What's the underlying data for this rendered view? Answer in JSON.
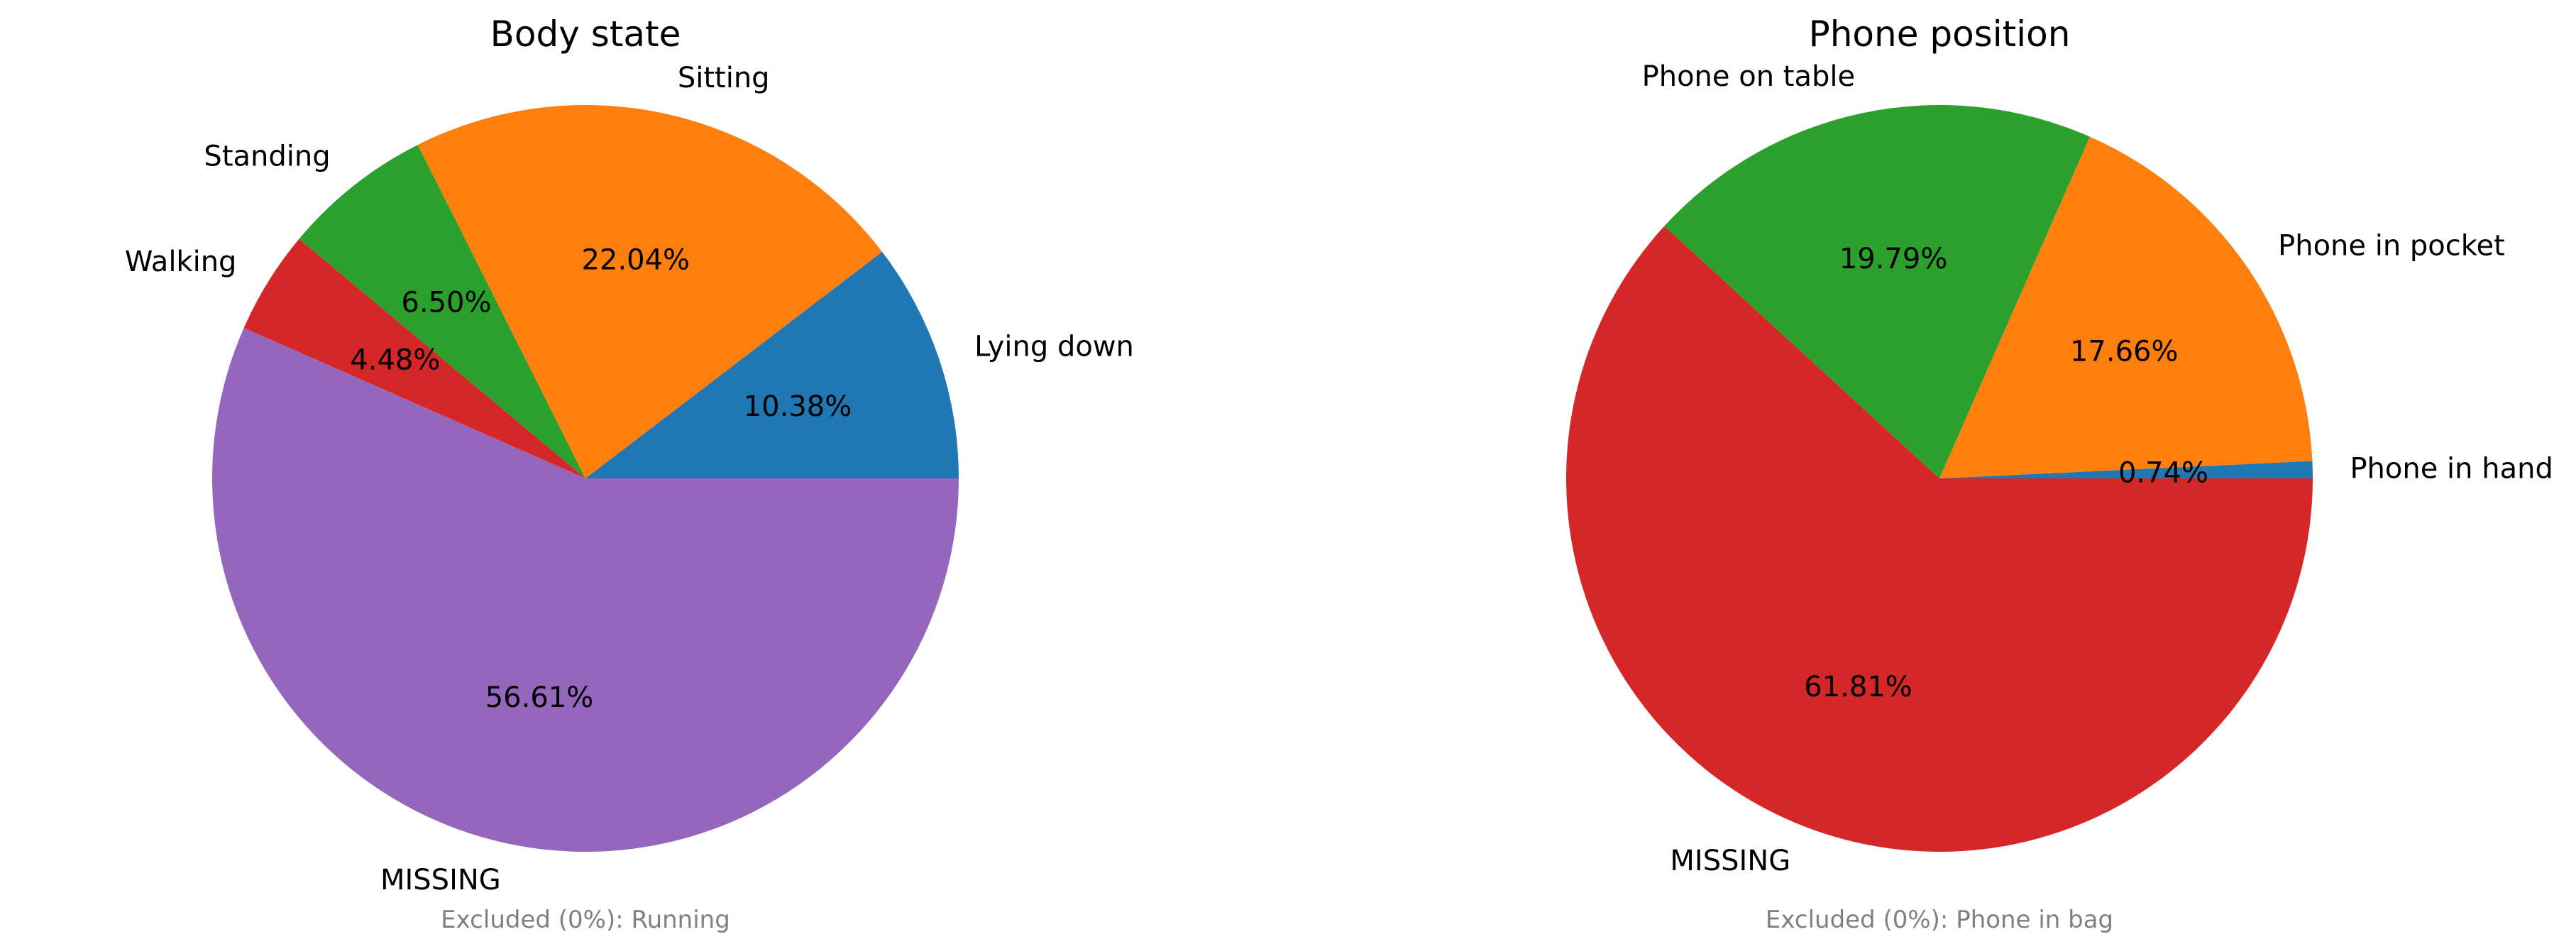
{
  "chart_data": [
    {
      "type": "pie",
      "title": "Body state",
      "slices": [
        {
          "label": "Lying down",
          "value": 10.38,
          "pct_label": "10.38%",
          "color": "#1f77b4"
        },
        {
          "label": "Sitting",
          "value": 22.04,
          "pct_label": "22.04%",
          "color": "#ff7f0e"
        },
        {
          "label": "Standing",
          "value": 6.5,
          "pct_label": "6.50%",
          "color": "#2ca02c"
        },
        {
          "label": "Walking",
          "value": 4.48,
          "pct_label": "4.48%",
          "color": "#d62728"
        },
        {
          "label": "MISSING",
          "value": 56.61,
          "pct_label": "56.61%",
          "color": "#9467bd"
        }
      ],
      "start_angle_deg": 0,
      "direction": "counterclockwise",
      "note": "Excluded (0%): Running"
    },
    {
      "type": "pie",
      "title": "Phone position",
      "slices": [
        {
          "label": "Phone in hand",
          "value": 0.74,
          "pct_label": "0.74%",
          "color": "#1f77b4"
        },
        {
          "label": "Phone in pocket",
          "value": 17.66,
          "pct_label": "17.66%",
          "color": "#ff7f0e"
        },
        {
          "label": "Phone on table",
          "value": 19.79,
          "pct_label": "19.79%",
          "color": "#2ca02c"
        },
        {
          "label": "MISSING",
          "value": 61.81,
          "pct_label": "61.81%",
          "color": "#d62728"
        }
      ],
      "start_angle_deg": 0,
      "direction": "counterclockwise",
      "note": "Excluded (0%): Phone in bag"
    }
  ]
}
